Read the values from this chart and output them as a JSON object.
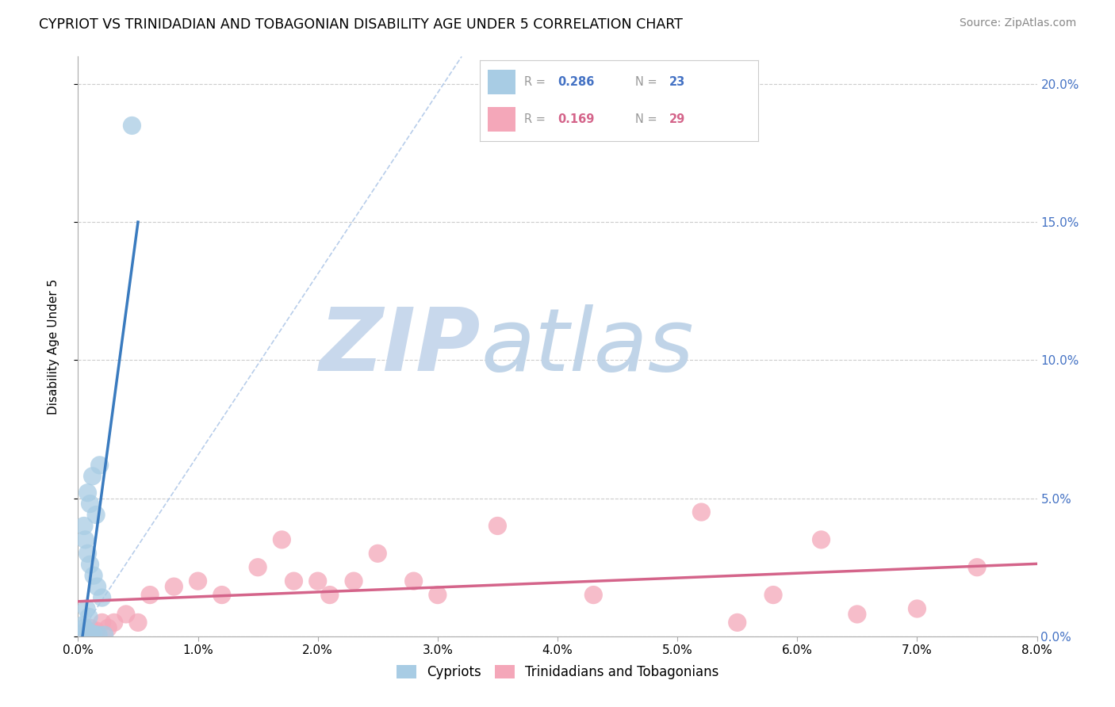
{
  "title": "CYPRIOT VS TRINIDADIAN AND TOBAGONIAN DISABILITY AGE UNDER 5 CORRELATION CHART",
  "source": "Source: ZipAtlas.com",
  "ylabel_label": "Disability Age Under 5",
  "xlim": [
    0.0,
    8.0
  ],
  "ylim": [
    0.0,
    21.0
  ],
  "yticks": [
    0.0,
    5.0,
    10.0,
    15.0,
    20.0
  ],
  "xticks": [
    0.0,
    1.0,
    2.0,
    3.0,
    4.0,
    5.0,
    6.0,
    7.0,
    8.0
  ],
  "legend_R1": "0.286",
  "legend_N1": "23",
  "legend_R2": "0.169",
  "legend_N2": "29",
  "color_blue": "#a8cce4",
  "color_pink": "#f4a7b9",
  "color_blue_line": "#3a7bbf",
  "color_pink_line": "#d4648a",
  "color_diag": "#b0c8e8",
  "watermark_ZIP": "ZIP",
  "watermark_atlas": "atlas",
  "watermark_color_ZIP": "#c8d8ec",
  "watermark_color_atlas": "#c0d4e8",
  "background_color": "#ffffff",
  "cypriot_x": [
    0.45,
    0.18,
    0.12,
    0.08,
    0.1,
    0.15,
    0.05,
    0.06,
    0.08,
    0.1,
    0.13,
    0.16,
    0.2,
    0.07,
    0.09,
    0.04,
    0.05,
    0.07,
    0.09,
    0.11,
    0.13,
    0.17,
    0.22
  ],
  "cypriot_y": [
    18.5,
    6.2,
    5.8,
    5.2,
    4.8,
    4.4,
    4.0,
    3.5,
    3.0,
    2.6,
    2.2,
    1.8,
    1.4,
    1.0,
    0.7,
    0.4,
    0.3,
    0.2,
    0.15,
    0.1,
    0.08,
    0.05,
    0.05
  ],
  "trini_x": [
    0.1,
    0.15,
    0.2,
    0.25,
    0.3,
    0.4,
    0.5,
    0.6,
    0.8,
    1.0,
    1.2,
    1.5,
    1.7,
    1.8,
    2.0,
    2.1,
    2.3,
    2.5,
    2.8,
    3.0,
    3.5,
    4.3,
    5.2,
    5.5,
    5.8,
    6.2,
    6.5,
    7.0,
    7.5
  ],
  "trini_y": [
    0.3,
    0.2,
    0.5,
    0.3,
    0.5,
    0.8,
    0.5,
    1.5,
    1.8,
    2.0,
    1.5,
    2.5,
    3.5,
    2.0,
    2.0,
    1.5,
    2.0,
    3.0,
    2.0,
    1.5,
    4.0,
    1.5,
    4.5,
    0.5,
    1.5,
    3.5,
    0.8,
    1.0,
    2.5
  ]
}
